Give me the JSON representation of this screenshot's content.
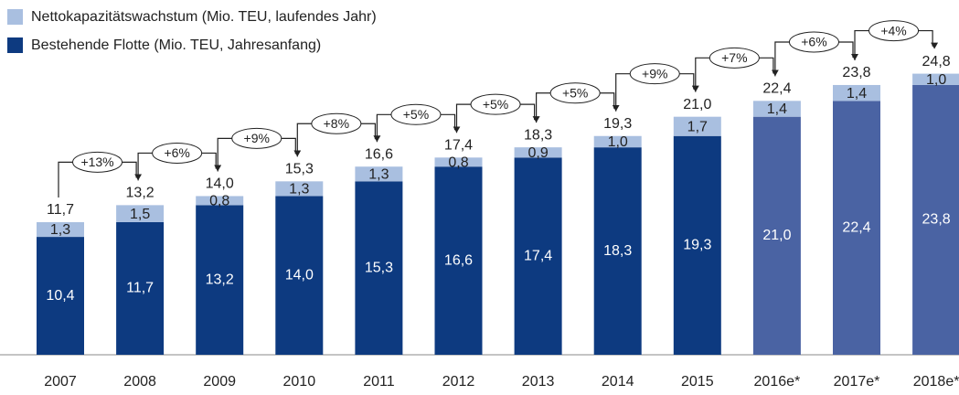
{
  "chart_data": {
    "type": "stacked_bar",
    "categories": [
      "2007",
      "2008",
      "2009",
      "2010",
      "2011",
      "2012",
      "2013",
      "2014",
      "2015",
      "2016e*",
      "2017e*",
      "2018e*"
    ],
    "series": [
      {
        "name": "Bestehende Flotte (Mio. TEU, Jahresanfang)",
        "color": "#0d3a80",
        "colors": [
          "#0d3a80",
          "#0d3a80",
          "#0d3a80",
          "#0d3a80",
          "#0d3a80",
          "#0d3a80",
          "#0d3a80",
          "#0d3a80",
          "#0d3a80",
          "#4a63a3",
          "#4a63a3",
          "#4a63a3"
        ],
        "values": [
          10.4,
          11.7,
          13.2,
          14.0,
          15.3,
          16.6,
          17.4,
          18.3,
          19.3,
          21.0,
          22.4,
          23.8
        ],
        "value_labels": [
          "10,4",
          "11,7",
          "13,2",
          "14,0",
          "15,3",
          "16,6",
          "17,4",
          "18,3",
          "19,3",
          "21,0",
          "22,4",
          "23,8"
        ]
      },
      {
        "name": "Nettokapazitätswachstum (Mio. TEU, laufendes Jahr)",
        "color": "#a9bfe0",
        "values": [
          1.3,
          1.5,
          0.8,
          1.3,
          1.3,
          0.8,
          0.9,
          1.0,
          1.7,
          1.4,
          1.4,
          1.0
        ],
        "value_labels": [
          "1,3",
          "1,5",
          "0,8",
          "1,3",
          "1,3",
          "0,8",
          "0,9",
          "1,0",
          "1,7",
          "1,4",
          "1,4",
          "1,0"
        ]
      }
    ],
    "total_labels": [
      "11,7",
      "13,2",
      "14,0",
      "15,3",
      "16,6",
      "17,4",
      "18,3",
      "19,3",
      "21,0",
      "22,4",
      "23,8",
      "24,8"
    ],
    "growth_labels": [
      "+13%",
      "+6%",
      "+9%",
      "+8%",
      "+5%",
      "+5%",
      "+5%",
      "+9%",
      "+7%",
      "+6%",
      "+4%"
    ],
    "ylim": [
      0,
      31.3
    ]
  }
}
